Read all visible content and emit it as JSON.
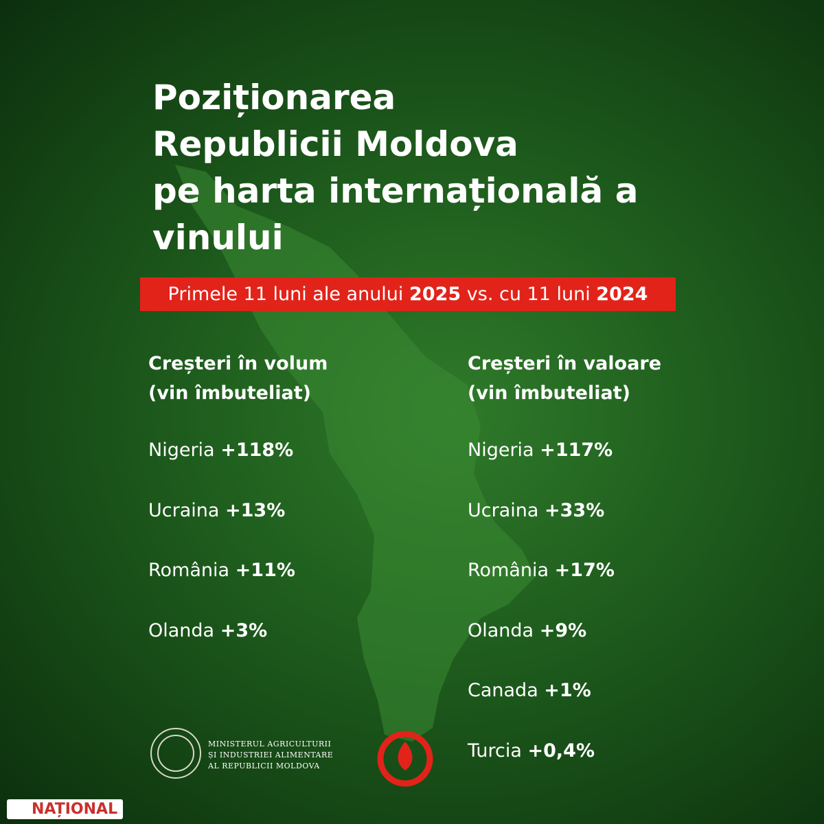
{
  "title": {
    "lines": [
      "Poziționarea",
      "Republicii Moldova",
      "pe harta internațională a",
      "vinului"
    ]
  },
  "subtitle": {
    "parts": [
      "Primele 11 luni ale anului",
      "2025",
      "vs. cu 11 luni",
      "2024"
    ]
  },
  "columns": [
    {
      "heading": [
        "Creșteri în volum",
        "(vin îmbuteliat)"
      ],
      "items": [
        {
          "country": "Nigeria",
          "change": "+118%"
        },
        {
          "country": "Ucraina",
          "change": "+13%"
        },
        {
          "country": "România",
          "change": "+11%"
        },
        {
          "country": "Olanda",
          "change": "+3%"
        }
      ]
    },
    {
      "heading": [
        "Creșteri în valoare",
        "(vin îmbuteliat)"
      ],
      "items": [
        {
          "country": "Nigeria",
          "change": "+117%"
        },
        {
          "country": "Ucraina",
          "change": "+33%"
        },
        {
          "country": "România",
          "change": "+17%"
        },
        {
          "country": "Olanda",
          "change": "+9%"
        },
        {
          "country": "Canada",
          "change": "+1%"
        },
        {
          "country": "Turcia",
          "change": "+0,4%"
        }
      ]
    }
  ],
  "footer": {
    "ministry": [
      "MINISTERUL AGRICULTURII",
      "ȘI INDUSTRIEI ALIMENTARE",
      "AL REPUBLICII MOLDOVA"
    ],
    "watermark": "NAȚIONAL"
  }
}
